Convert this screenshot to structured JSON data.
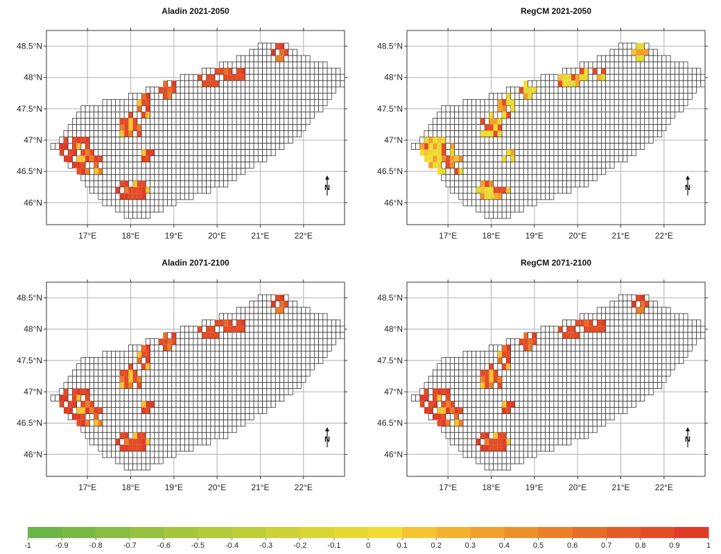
{
  "panels": [
    {
      "title": "Aladin 2021-2050",
      "lat_labels": [
        "48.5°N",
        "48°N",
        "47.5°N",
        "47°N",
        "46.5°N",
        "46°N"
      ],
      "lon_labels": [
        "17°E",
        "18°E",
        "19°E",
        "20°E",
        "21°E",
        "22°E"
      ],
      "north_arrow": "N",
      "values_pattern": "strong-red-west-north"
    },
    {
      "title": "RegCM 2021-2050",
      "lat_labels": [
        "48.5°N",
        "48°N",
        "47.5°N",
        "47°N",
        "46.5°N",
        "46°N"
      ],
      "lon_labels": [
        "17°E",
        "18°E",
        "19°E",
        "20°E",
        "21°E",
        "22°E"
      ],
      "north_arrow": "N",
      "values_pattern": "mixed-yellow-orange"
    },
    {
      "title": "Aladin 2071-2100",
      "lat_labels": [
        "48.5°N",
        "48°N",
        "47.5°N",
        "47°N",
        "46.5°N",
        "46°N"
      ],
      "lon_labels": [
        "17°E",
        "18°E",
        "19°E",
        "20°E",
        "21°E",
        "22°E"
      ],
      "north_arrow": "N",
      "values_pattern": "strong-red-west-north"
    },
    {
      "title": "RegCM 2071-2100",
      "lat_labels": [
        "48.5°N",
        "48°N",
        "47.5°N",
        "47°N",
        "46.5°N",
        "46°N"
      ],
      "lon_labels": [
        "17°E",
        "18°E",
        "19°E",
        "20°E",
        "21°E",
        "22°E"
      ],
      "north_arrow": "N",
      "values_pattern": "strong-red-west-north"
    }
  ],
  "colorbar": {
    "labels": [
      "-1",
      "-0.9",
      "-0.8",
      "-0.7",
      "-0.6",
      "-0.5",
      "-0.4",
      "-0.3",
      "-0.2",
      "-0.1",
      "0",
      "0.1",
      "0.2",
      "0.3",
      "0.4",
      "0.5",
      "0.6",
      "0.7",
      "0.8",
      "0.9",
      "1"
    ],
    "colors": [
      "#6ab545",
      "#78b942",
      "#87bd40",
      "#95c13e",
      "#a4c53c",
      "#b2c93a",
      "#bfcd38",
      "#cdd136",
      "#dad534",
      "#e7d932",
      "#f1dc33",
      "#f5c430",
      "#f3b22e",
      "#f1a12c",
      "#ee902a",
      "#eb7f28",
      "#e86e27",
      "#e55d26",
      "#e34c25",
      "#e13b25"
    ]
  },
  "colors": {
    "grid": "#bbbbbb",
    "cell_border": "#333333",
    "frame": "#333333"
  }
}
